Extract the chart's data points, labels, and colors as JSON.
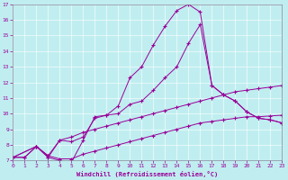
{
  "xlabel": "Windchill (Refroidissement éolien,°C)",
  "bg_color": "#c0eef0",
  "line_color": "#990099",
  "grid_color": "#b0dde0",
  "xlim": [
    0,
    23
  ],
  "ylim": [
    7,
    17
  ],
  "xticks": [
    0,
    1,
    2,
    3,
    4,
    5,
    6,
    7,
    8,
    9,
    10,
    11,
    12,
    13,
    14,
    15,
    16,
    17,
    18,
    19,
    20,
    21,
    22,
    23
  ],
  "yticks": [
    7,
    8,
    9,
    10,
    11,
    12,
    13,
    14,
    15,
    16,
    17
  ],
  "curves": [
    {
      "x": [
        0,
        2,
        3,
        4,
        5,
        6,
        7,
        8,
        9,
        10,
        11,
        12,
        13,
        14,
        15,
        16,
        17,
        18,
        19,
        20,
        21,
        22,
        23
      ],
      "y": [
        7.2,
        7.9,
        7.2,
        7.0,
        6.9,
        8.3,
        9.8,
        9.9,
        10.5,
        12.3,
        13.0,
        14.4,
        15.6,
        16.6,
        17.0,
        16.5,
        11.8,
        11.2,
        10.8,
        10.1,
        9.7,
        9.6,
        9.4
      ]
    },
    {
      "x": [
        0,
        2,
        3,
        4,
        5,
        6,
        7,
        8,
        9,
        10,
        11,
        12,
        13,
        14,
        15,
        16,
        17,
        18,
        19,
        20,
        21,
        22,
        23
      ],
      "y": [
        7.2,
        7.9,
        7.2,
        8.3,
        8.2,
        8.5,
        9.7,
        9.9,
        10.0,
        10.6,
        10.8,
        11.5,
        12.3,
        13.0,
        14.5,
        15.7,
        11.8,
        11.2,
        10.8,
        10.1,
        9.7,
        9.6,
        9.4
      ]
    },
    {
      "x": [
        0,
        1,
        2,
        3,
        4,
        5,
        6,
        7,
        8,
        9,
        10,
        11,
        12,
        13,
        14,
        15,
        16,
        17,
        18,
        19,
        20,
        21,
        22,
        23
      ],
      "y": [
        7.2,
        7.2,
        7.9,
        7.3,
        8.3,
        8.5,
        8.8,
        9.0,
        9.2,
        9.4,
        9.6,
        9.8,
        10.0,
        10.2,
        10.4,
        10.6,
        10.8,
        11.0,
        11.2,
        11.4,
        11.5,
        11.6,
        11.7,
        11.8
      ]
    },
    {
      "x": [
        0,
        1,
        2,
        3,
        4,
        5,
        6,
        7,
        8,
        9,
        10,
        11,
        12,
        13,
        14,
        15,
        16,
        17,
        18,
        19,
        20,
        21,
        22,
        23
      ],
      "y": [
        7.2,
        7.2,
        7.9,
        7.3,
        7.1,
        7.1,
        7.4,
        7.6,
        7.8,
        8.0,
        8.2,
        8.4,
        8.6,
        8.8,
        9.0,
        9.2,
        9.4,
        9.5,
        9.6,
        9.7,
        9.8,
        9.8,
        9.85,
        9.9
      ]
    }
  ]
}
